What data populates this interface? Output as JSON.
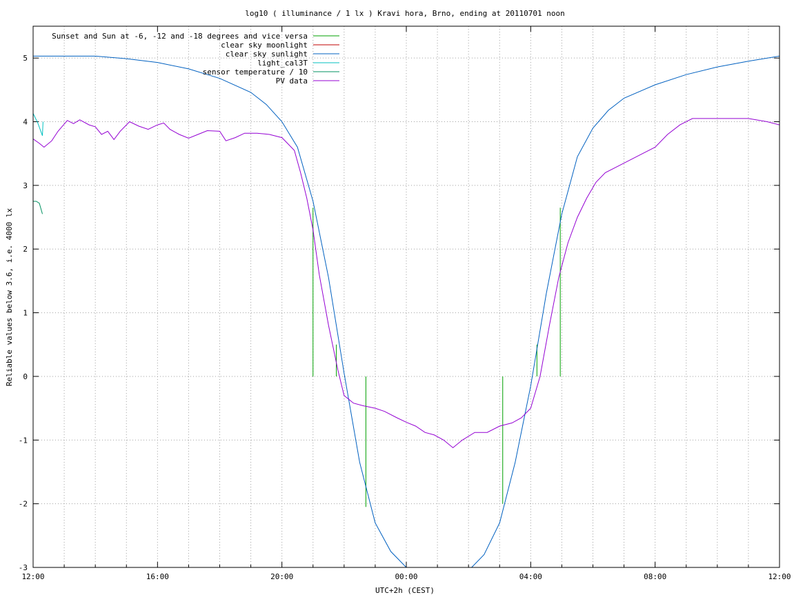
{
  "chart_data": {
    "type": "line",
    "title": "log10 ( illuminance / 1 lx ) Kravi hora, Brno, ending at 20110701 noon",
    "xlabel": "UTC+2h (CEST)",
    "ylabel": "Reliable values below 3.6, i.e. 4000 lx",
    "x_unit": "hours after 12:00 local (UTC+2h)",
    "xlim": [
      0,
      24
    ],
    "ylim": [
      -3,
      5.5
    ],
    "x_ticks": [
      {
        "value": 0,
        "label": "12:00"
      },
      {
        "value": 4,
        "label": "16:00"
      },
      {
        "value": 8,
        "label": "20:00"
      },
      {
        "value": 12,
        "label": "00:00"
      },
      {
        "value": 16,
        "label": "04:00"
      },
      {
        "value": 20,
        "label": "08:00"
      },
      {
        "value": 24,
        "label": "12:00"
      }
    ],
    "y_ticks": [
      -3,
      -2,
      -1,
      0,
      1,
      2,
      3,
      4,
      5
    ],
    "grid": true,
    "legend_position": "top-left",
    "series": [
      {
        "name": "Sunset and Sun at -6, -12 and -18 degrees and vice versa",
        "color": "#00a000",
        "style": "impulses",
        "points": [
          [
            9.0,
            2.65
          ],
          [
            9.75,
            0.5
          ],
          [
            10.7,
            -2.05
          ],
          [
            15.1,
            -2.0
          ],
          [
            16.2,
            0.5
          ],
          [
            16.95,
            2.65
          ]
        ]
      },
      {
        "name": "clear sky moonlight",
        "color": "#c00000",
        "style": "line",
        "points": []
      },
      {
        "name": "clear sky sunlight",
        "color": "#0060c0",
        "style": "line",
        "points": [
          [
            0,
            5.03
          ],
          [
            1,
            5.03
          ],
          [
            2,
            5.03
          ],
          [
            3,
            4.99
          ],
          [
            4,
            4.93
          ],
          [
            5,
            4.83
          ],
          [
            6,
            4.68
          ],
          [
            7,
            4.46
          ],
          [
            7.5,
            4.27
          ],
          [
            8,
            4.0
          ],
          [
            8.5,
            3.6
          ],
          [
            9.0,
            2.75
          ],
          [
            9.5,
            1.55
          ],
          [
            10.0,
            0.05
          ],
          [
            10.5,
            -1.35
          ],
          [
            11.0,
            -2.3
          ],
          [
            11.5,
            -2.75
          ],
          [
            12.0,
            -3.0
          ],
          [
            12.3,
            -3.1
          ],
          [
            13.5,
            -3.5
          ],
          [
            14.0,
            -3.05
          ],
          [
            14.5,
            -2.8
          ],
          [
            15.0,
            -2.3
          ],
          [
            15.5,
            -1.35
          ],
          [
            16.0,
            -0.15
          ],
          [
            16.5,
            1.3
          ],
          [
            17.0,
            2.55
          ],
          [
            17.5,
            3.45
          ],
          [
            18.0,
            3.9
          ],
          [
            18.5,
            4.18
          ],
          [
            19.0,
            4.37
          ],
          [
            20.0,
            4.58
          ],
          [
            21.0,
            4.74
          ],
          [
            22.0,
            4.86
          ],
          [
            23.0,
            4.95
          ],
          [
            24.0,
            5.03
          ]
        ]
      },
      {
        "name": "light_cal3T",
        "color": "#00c0c0",
        "style": "line",
        "points": [
          [
            0,
            4.13
          ],
          [
            0.15,
            3.98
          ],
          [
            0.3,
            3.78
          ],
          [
            0.32,
            4.0
          ]
        ]
      },
      {
        "name": "sensor temperature / 10",
        "color": "#009060",
        "style": "line",
        "points": [
          [
            0,
            2.75
          ],
          [
            0.1,
            2.75
          ],
          [
            0.2,
            2.72
          ],
          [
            0.3,
            2.55
          ]
        ]
      },
      {
        "name": "PV data",
        "color": "#9400d3",
        "style": "line",
        "points": [
          [
            0,
            3.73
          ],
          [
            0.2,
            3.66
          ],
          [
            0.35,
            3.6
          ],
          [
            0.6,
            3.7
          ],
          [
            0.8,
            3.85
          ],
          [
            1.1,
            4.02
          ],
          [
            1.3,
            3.97
          ],
          [
            1.5,
            4.03
          ],
          [
            1.8,
            3.95
          ],
          [
            2.0,
            3.92
          ],
          [
            2.2,
            3.8
          ],
          [
            2.4,
            3.85
          ],
          [
            2.6,
            3.72
          ],
          [
            2.8,
            3.85
          ],
          [
            3.1,
            4.0
          ],
          [
            3.4,
            3.93
          ],
          [
            3.7,
            3.88
          ],
          [
            4.0,
            3.95
          ],
          [
            4.2,
            3.98
          ],
          [
            4.4,
            3.88
          ],
          [
            4.7,
            3.8
          ],
          [
            5.0,
            3.74
          ],
          [
            5.3,
            3.8
          ],
          [
            5.6,
            3.86
          ],
          [
            6.0,
            3.85
          ],
          [
            6.2,
            3.7
          ],
          [
            6.5,
            3.75
          ],
          [
            6.8,
            3.82
          ],
          [
            7.2,
            3.82
          ],
          [
            7.6,
            3.8
          ],
          [
            8.0,
            3.75
          ],
          [
            8.2,
            3.65
          ],
          [
            8.4,
            3.55
          ],
          [
            8.6,
            3.2
          ],
          [
            8.8,
            2.8
          ],
          [
            9.0,
            2.3
          ],
          [
            9.2,
            1.6
          ],
          [
            9.5,
            0.8
          ],
          [
            9.8,
            0.1
          ],
          [
            10.0,
            -0.3
          ],
          [
            10.3,
            -0.42
          ],
          [
            10.6,
            -0.46
          ],
          [
            11.0,
            -0.5
          ],
          [
            11.3,
            -0.55
          ],
          [
            11.7,
            -0.65
          ],
          [
            12.0,
            -0.72
          ],
          [
            12.3,
            -0.78
          ],
          [
            12.6,
            -0.88
          ],
          [
            12.9,
            -0.92
          ],
          [
            13.2,
            -1.0
          ],
          [
            13.5,
            -1.12
          ],
          [
            13.8,
            -1.0
          ],
          [
            14.2,
            -0.88
          ],
          [
            14.6,
            -0.88
          ],
          [
            15.0,
            -0.78
          ],
          [
            15.4,
            -0.73
          ],
          [
            15.7,
            -0.65
          ],
          [
            16.0,
            -0.5
          ],
          [
            16.3,
            0.0
          ],
          [
            16.6,
            0.8
          ],
          [
            16.9,
            1.55
          ],
          [
            17.2,
            2.1
          ],
          [
            17.5,
            2.5
          ],
          [
            17.8,
            2.8
          ],
          [
            18.1,
            3.05
          ],
          [
            18.4,
            3.2
          ],
          [
            18.8,
            3.3
          ],
          [
            19.2,
            3.4
          ],
          [
            19.6,
            3.5
          ],
          [
            20.0,
            3.6
          ],
          [
            20.4,
            3.8
          ],
          [
            20.8,
            3.95
          ],
          [
            21.2,
            4.05
          ],
          [
            21.8,
            4.05
          ],
          [
            22.4,
            4.05
          ],
          [
            23.0,
            4.05
          ],
          [
            23.6,
            4.0
          ],
          [
            24.0,
            3.95
          ]
        ]
      }
    ]
  }
}
